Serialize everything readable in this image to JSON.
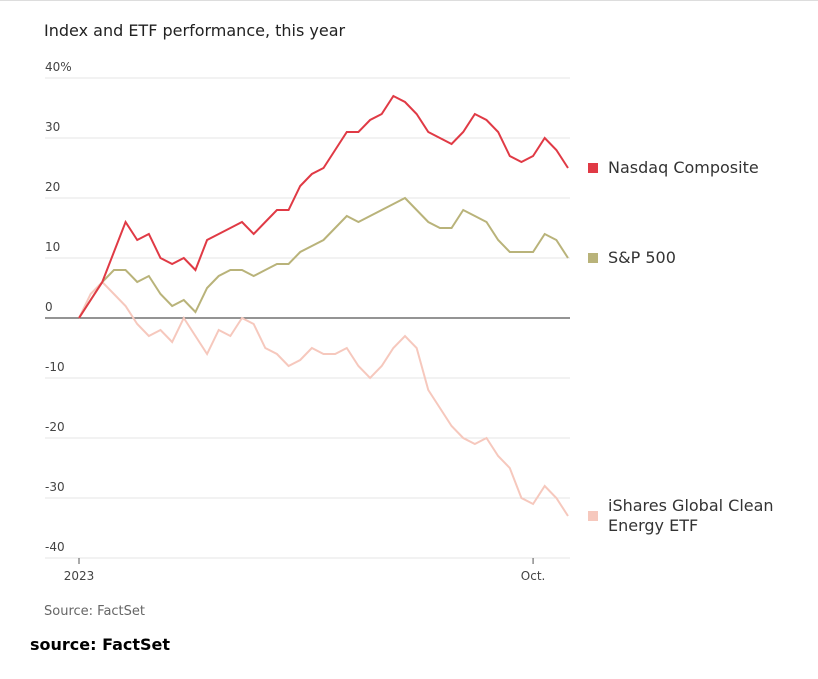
{
  "chart_data": {
    "type": "line",
    "title": "Index and ETF performance, this year",
    "source": "Source: FactSet",
    "categories": [
      "2023",
      null,
      null,
      null,
      null,
      null,
      null,
      null,
      null,
      null,
      null,
      null,
      null,
      null,
      null,
      null,
      null,
      null,
      null,
      null,
      null,
      null,
      null,
      null,
      null,
      null,
      null,
      null,
      null,
      null,
      null,
      null,
      null,
      null,
      null,
      null,
      null,
      null,
      null,
      "Oct.",
      null,
      null,
      null
    ],
    "series": [
      {
        "name": "Nasdaq Composite",
        "color": "#e03a45",
        "values": [
          0,
          3,
          6,
          11,
          16,
          13,
          14,
          10,
          9,
          10,
          8,
          13,
          14,
          15,
          16,
          14,
          16,
          18,
          18,
          22,
          24,
          25,
          28,
          31,
          31,
          33,
          34,
          37,
          36,
          34,
          31,
          30,
          29,
          31,
          34,
          33,
          31,
          27,
          26,
          27,
          30,
          28,
          25
        ]
      },
      {
        "name": "S&P 500",
        "color": "#b9b37a",
        "values": [
          0,
          3,
          6,
          8,
          8,
          6,
          7,
          4,
          2,
          3,
          1,
          5,
          7,
          8,
          8,
          7,
          8,
          9,
          9,
          11,
          12,
          13,
          15,
          17,
          16,
          17,
          18,
          19,
          20,
          18,
          16,
          15,
          15,
          18,
          17,
          16,
          13,
          11,
          11,
          11,
          14,
          13,
          10
        ]
      },
      {
        "name": "iShares Global Clean Energy ETF",
        "color": "#f6c8bd",
        "values": [
          0,
          4,
          6,
          4,
          2,
          -1,
          -3,
          -2,
          -4,
          0,
          -3,
          -6,
          -2,
          -3,
          0,
          -1,
          -5,
          -6,
          -8,
          -7,
          -5,
          -6,
          -6,
          -5,
          -8,
          -10,
          -8,
          -5,
          -3,
          -5,
          -12,
          -15,
          -18,
          -20,
          -21,
          -20,
          -23,
          -25,
          -30,
          -31,
          -28,
          -30,
          -33
        ]
      }
    ],
    "ylim": [
      -40,
      40
    ],
    "yticks": [
      {
        "value": 40,
        "label": "40%"
      },
      30,
      20,
      10,
      0,
      -10,
      -20,
      -30,
      -40
    ],
    "grid": true
  },
  "caption": "source: FactSet"
}
